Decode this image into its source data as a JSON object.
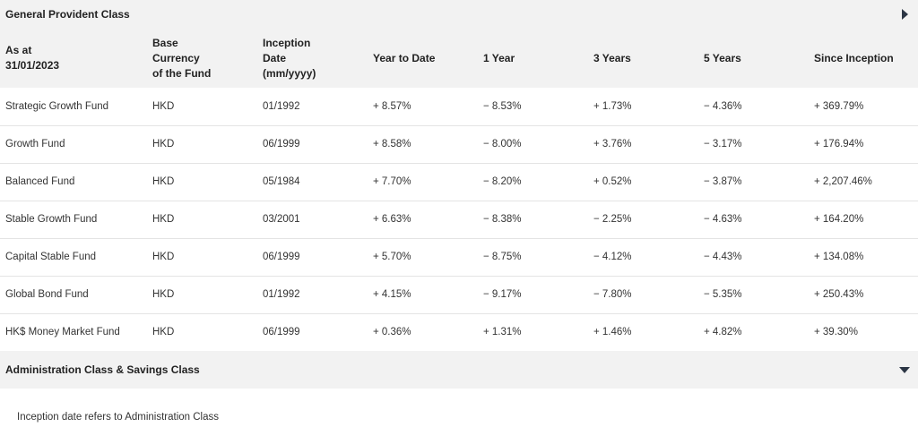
{
  "general_section": {
    "title": "General Provident Class",
    "toggle_icon": "caret-right-icon"
  },
  "table": {
    "headers": {
      "as_at": [
        "As at",
        "31/01/2023"
      ],
      "currency": [
        "Base",
        "Currency",
        "of the Fund"
      ],
      "inception": [
        "Inception",
        "Date",
        "(mm/yyyy)"
      ],
      "ytd": "Year to Date",
      "one_year": "1 Year",
      "three_years": "3 Years",
      "five_years": "5 Years",
      "since_inception": "Since Inception"
    },
    "rows": [
      {
        "name": "Strategic Growth Fund",
        "currency": "HKD",
        "inception": "01/1992",
        "ytd": "+ 8.57%",
        "one_year": "− 8.53%",
        "three_years": "+ 1.73%",
        "five_years": "− 4.36%",
        "since_inception": "+ 369.79%"
      },
      {
        "name": "Growth Fund",
        "currency": "HKD",
        "inception": "06/1999",
        "ytd": "+ 8.58%",
        "one_year": "− 8.00%",
        "three_years": "+ 3.76%",
        "five_years": "− 3.17%",
        "since_inception": "+ 176.94%"
      },
      {
        "name": "Balanced Fund",
        "currency": "HKD",
        "inception": "05/1984",
        "ytd": "+ 7.70%",
        "one_year": "− 8.20%",
        "three_years": "+ 0.52%",
        "five_years": "− 3.87%",
        "since_inception": "+ 2,207.46%"
      },
      {
        "name": "Stable Growth Fund",
        "currency": "HKD",
        "inception": "03/2001",
        "ytd": "+ 6.63%",
        "one_year": "− 8.38%",
        "three_years": "− 2.25%",
        "five_years": "− 4.63%",
        "since_inception": "+ 164.20%"
      },
      {
        "name": "Capital Stable Fund",
        "currency": "HKD",
        "inception": "06/1999",
        "ytd": "+ 5.70%",
        "one_year": "− 8.75%",
        "three_years": "− 4.12%",
        "five_years": "− 4.43%",
        "since_inception": "+ 134.08%"
      },
      {
        "name": "Global Bond Fund",
        "currency": "HKD",
        "inception": "01/1992",
        "ytd": "+ 4.15%",
        "one_year": "− 9.17%",
        "three_years": "− 7.80%",
        "five_years": "− 5.35%",
        "since_inception": "+ 250.43%"
      },
      {
        "name": "HK$ Money Market Fund",
        "currency": "HKD",
        "inception": "06/1999",
        "ytd": "+ 0.36%",
        "one_year": "+ 1.31%",
        "three_years": "+ 1.46%",
        "five_years": "+ 4.82%",
        "since_inception": "+ 39.30%"
      }
    ]
  },
  "admin_section": {
    "title": "Administration Class & Savings Class",
    "toggle_icon": "caret-down-icon"
  },
  "footnote": "Inception date refers to Administration Class"
}
